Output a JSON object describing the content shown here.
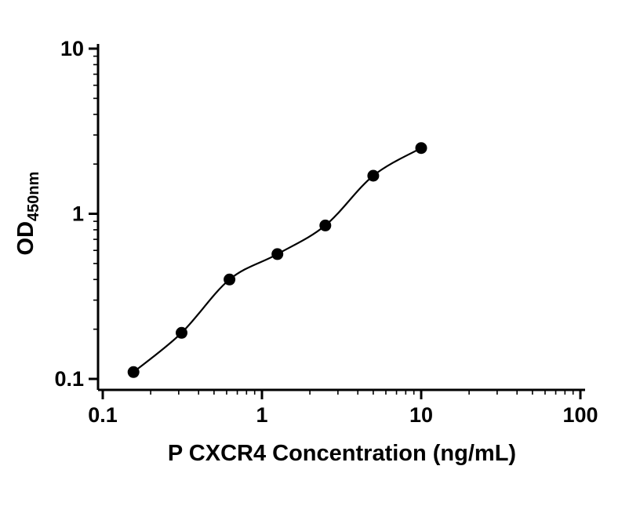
{
  "chart_data": {
    "type": "scatter",
    "title": "",
    "xlabel": "P CXCR4 Concentration (ng/mL)",
    "ylabel_main": "OD",
    "ylabel_sub": "450nm",
    "xscale": "log",
    "yscale": "log",
    "xlim": [
      0.1,
      100
    ],
    "ylim": [
      0.1,
      10
    ],
    "x_tick_values": [
      0.1,
      1,
      10,
      100
    ],
    "x_tick_labels": [
      "0.1",
      "1",
      "10",
      "100"
    ],
    "y_tick_values": [
      0.1,
      1,
      10
    ],
    "y_tick_labels": [
      "0.1",
      "1",
      "10"
    ],
    "grid": false,
    "legend": "none",
    "background": "#ffffff",
    "axis_color": "#000000",
    "series": [
      {
        "marker": "filled-circle",
        "color": "#000000",
        "x": [
          0.156,
          0.3125,
          0.625,
          1.25,
          2.5,
          5,
          10
        ],
        "y": [
          0.11,
          0.19,
          0.4,
          0.57,
          0.85,
          1.7,
          2.5
        ],
        "fit_curve": true
      }
    ]
  }
}
